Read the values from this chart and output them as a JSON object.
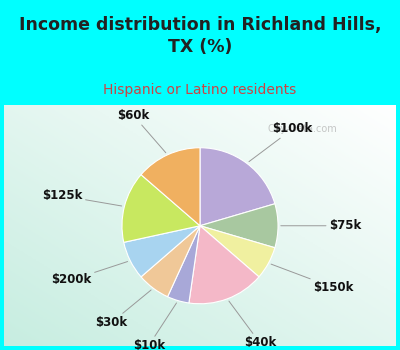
{
  "title": "Income distribution in Richland Hills,\nTX (%)",
  "subtitle": "Hispanic or Latino residents",
  "title_color": "#222222",
  "subtitle_color": "#cc4444",
  "bg_color": "#00ffff",
  "watermark": "City-Data.com",
  "slices": [
    {
      "label": "$100k",
      "value": 18,
      "color": "#b8a8d8"
    },
    {
      "label": "$75k",
      "value": 8,
      "color": "#a8c8a0"
    },
    {
      "label": "$150k",
      "value": 6,
      "color": "#f0f0a0"
    },
    {
      "label": "$40k",
      "value": 14,
      "color": "#f4b8c8"
    },
    {
      "label": "$10k",
      "value": 4,
      "color": "#a8a8d8"
    },
    {
      "label": "$30k",
      "value": 6,
      "color": "#f0c898"
    },
    {
      "label": "$200k",
      "value": 7,
      "color": "#a8d4f0"
    },
    {
      "label": "$125k",
      "value": 13,
      "color": "#c8e860"
    },
    {
      "label": "$60k",
      "value": 12,
      "color": "#f0b060"
    }
  ],
  "label_fontsize": 8.5,
  "title_fontsize": 12.5,
  "subtitle_fontsize": 10
}
